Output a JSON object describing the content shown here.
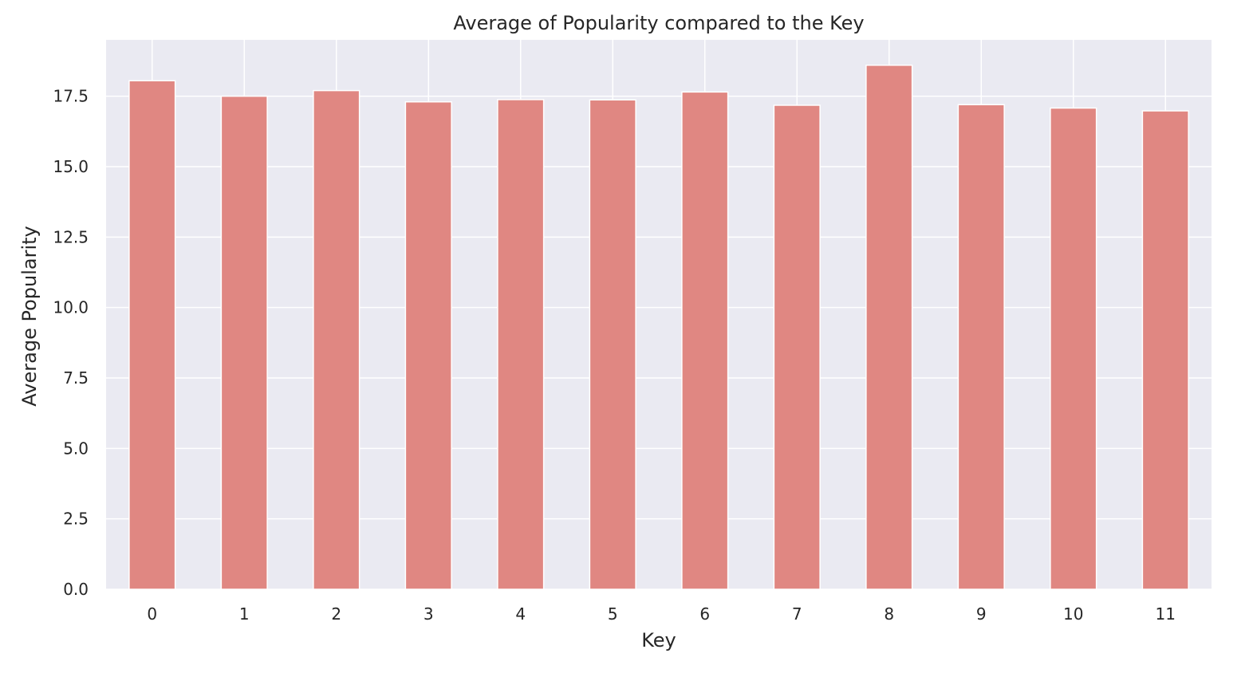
{
  "chart_data": {
    "type": "bar",
    "title": "Average of Popularity compared to the Key",
    "xlabel": "Key",
    "ylabel": "Average Popularity",
    "categories": [
      "0",
      "1",
      "2",
      "3",
      "4",
      "5",
      "6",
      "7",
      "8",
      "9",
      "10",
      "11"
    ],
    "values": [
      18.05,
      17.5,
      17.7,
      17.3,
      17.38,
      17.37,
      17.65,
      17.18,
      18.6,
      17.2,
      17.08,
      16.98
    ],
    "ylim": [
      0,
      19.5
    ],
    "yticks": [
      "0.0",
      "2.5",
      "5.0",
      "7.5",
      "10.0",
      "12.5",
      "15.0",
      "17.5"
    ],
    "grid": true,
    "colors": {
      "bar": "#e08782",
      "plot_background": "#eaeaf2",
      "grid": "#ffffff"
    }
  }
}
